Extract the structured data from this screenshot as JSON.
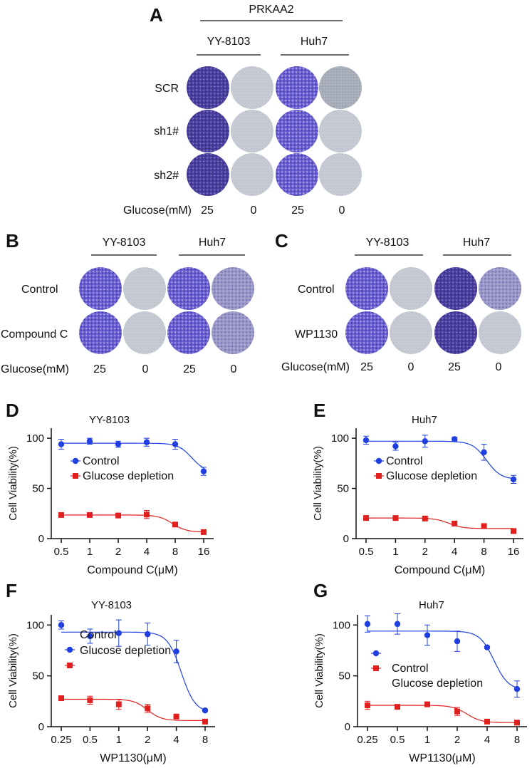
{
  "colors": {
    "control": "#1f3fe0",
    "glucose": "#e01f1f",
    "well_rich": "#5a4aa8",
    "well_dense": "#3d3296",
    "well_sparse": "#c5cad3",
    "well_faint": "#b9bec8"
  },
  "panelA": {
    "letter": "A",
    "header": "PRKAA2",
    "cols": [
      "YY-8103",
      "Huh7"
    ],
    "rows": [
      "SCR",
      "sh1#",
      "sh2#"
    ],
    "glucose_label": "Glucose(mM)",
    "glucose_values": [
      "25",
      "0",
      "25",
      "0"
    ]
  },
  "panelB": {
    "letter": "B",
    "cols": [
      "YY-8103",
      "Huh7"
    ],
    "rows": [
      "Control",
      "Compound C"
    ],
    "glucose_label": "Glucose(mM)",
    "glucose_values": [
      "25",
      "0",
      "25",
      "0"
    ]
  },
  "panelC": {
    "letter": "C",
    "cols": [
      "YY-8103",
      "Huh7"
    ],
    "rows": [
      "Control",
      "WP1130"
    ],
    "glucose_label": "Glucose(mM)",
    "glucose_values": [
      "25",
      "0",
      "25",
      "0"
    ]
  },
  "chart_data": [
    {
      "id": "D",
      "letter": "D",
      "type": "line",
      "title": "YY-8103",
      "xlabel": "Compound C(μM)",
      "ylabel": "Cell Viability(%)",
      "x": [
        0.5,
        1,
        2,
        4,
        8,
        16
      ],
      "xticks": [
        "0.5",
        "1",
        "2",
        "4",
        "8",
        "16"
      ],
      "ylim": [
        0,
        110
      ],
      "yticks": [
        "0",
        "50",
        "100"
      ],
      "legend": [
        "Control",
        "Glucose depletion"
      ],
      "series": [
        {
          "name": "Control",
          "values": [
            94,
            97,
            94,
            96,
            94,
            67
          ],
          "errors": [
            5,
            3,
            3,
            4,
            5,
            4
          ],
          "fit": {
            "top": 95,
            "bottom": 66,
            "ec50": 12
          }
        },
        {
          "name": "Glucose depletion",
          "values": [
            23.5,
            23.5,
            23,
            24,
            14,
            6.5
          ],
          "errors": [
            1.5,
            1.5,
            1.5,
            4,
            1.5,
            1
          ],
          "fit": {
            "top": 23.5,
            "bottom": 6.5,
            "ec50": 7.5
          }
        }
      ]
    },
    {
      "id": "E",
      "letter": "E",
      "type": "line",
      "title": "Huh7",
      "xlabel": "Compound C(μM)",
      "ylabel": "Cell Viability(%)",
      "x": [
        0.5,
        1,
        2,
        4,
        8,
        16
      ],
      "xticks": [
        "0.5",
        "1",
        "2",
        "4",
        "8",
        "16"
      ],
      "ylim": [
        0,
        110
      ],
      "yticks": [
        "0",
        "50",
        "100"
      ],
      "legend": [
        "Control",
        "Glucose depletion"
      ],
      "series": [
        {
          "name": "Control",
          "values": [
            98,
            92,
            97,
            99,
            86,
            59
          ],
          "errors": [
            4,
            4,
            6,
            2,
            8,
            4
          ],
          "fit": {
            "top": 97,
            "bottom": 59,
            "ec50": 8.5
          }
        },
        {
          "name": "Glucose depletion",
          "values": [
            20.5,
            20.5,
            20,
            15,
            12.5,
            7.5
          ],
          "errors": [
            1.5,
            1.5,
            1.5,
            2,
            1,
            1
          ],
          "fit": {
            "top": 20.5,
            "bottom": 10,
            "ec50": 3.5
          }
        }
      ]
    },
    {
      "id": "F",
      "letter": "F",
      "type": "line",
      "title": "YY-8103",
      "xlabel": "WP1130(μM)",
      "ylabel": "Cell Viability(%)",
      "x": [
        0.25,
        0.5,
        1,
        2,
        4,
        8
      ],
      "xticks": [
        "0.25",
        "0.5",
        "1",
        "2",
        "4",
        "8"
      ],
      "ylim": [
        0,
        110
      ],
      "yticks": [
        "0",
        "50",
        "100"
      ],
      "legend": [
        "Control",
        "Glucose depletion"
      ],
      "series": [
        {
          "name": "Control",
          "values": [
            100,
            89,
            92,
            91,
            74,
            16
          ],
          "errors": [
            4,
            7,
            13,
            11,
            11,
            1
          ],
          "fit": {
            "top": 93,
            "bottom": 14,
            "ec50": 4.5
          }
        },
        {
          "name": "Glucose depletion",
          "values": [
            28,
            26,
            22,
            18,
            10,
            5
          ],
          "errors": [
            1.5,
            4,
            5,
            4,
            1.5,
            1
          ],
          "fit": {
            "top": 27,
            "bottom": 6,
            "ec50": 2
          }
        }
      ]
    },
    {
      "id": "G",
      "letter": "G",
      "type": "line",
      "title": "Huh7",
      "xlabel": "WP1130(μM)",
      "ylabel": "Cell Viability(%)",
      "x": [
        0.25,
        0.5,
        1,
        2,
        4,
        8
      ],
      "xticks": [
        "0.25",
        "0.5",
        "1",
        "2",
        "4",
        "8"
      ],
      "ylim": [
        0,
        110
      ],
      "yticks": [
        "0",
        "50",
        "100"
      ],
      "legend": [
        "Control",
        "Glucose depletion"
      ],
      "series": [
        {
          "name": "Control",
          "values": [
            101,
            101,
            90,
            84,
            78,
            37
          ],
          "errors": [
            8,
            10,
            10,
            10,
            1,
            8
          ],
          "fit": {
            "top": 94,
            "bottom": 36,
            "ec50": 4.7
          }
        },
        {
          "name": "Glucose depletion",
          "values": [
            21,
            19.5,
            22,
            15,
            5,
            4
          ],
          "errors": [
            4,
            1.5,
            1.5,
            4,
            1,
            1
          ],
          "fit": {
            "top": 21,
            "bottom": 4,
            "ec50": 2.5
          }
        }
      ]
    }
  ]
}
